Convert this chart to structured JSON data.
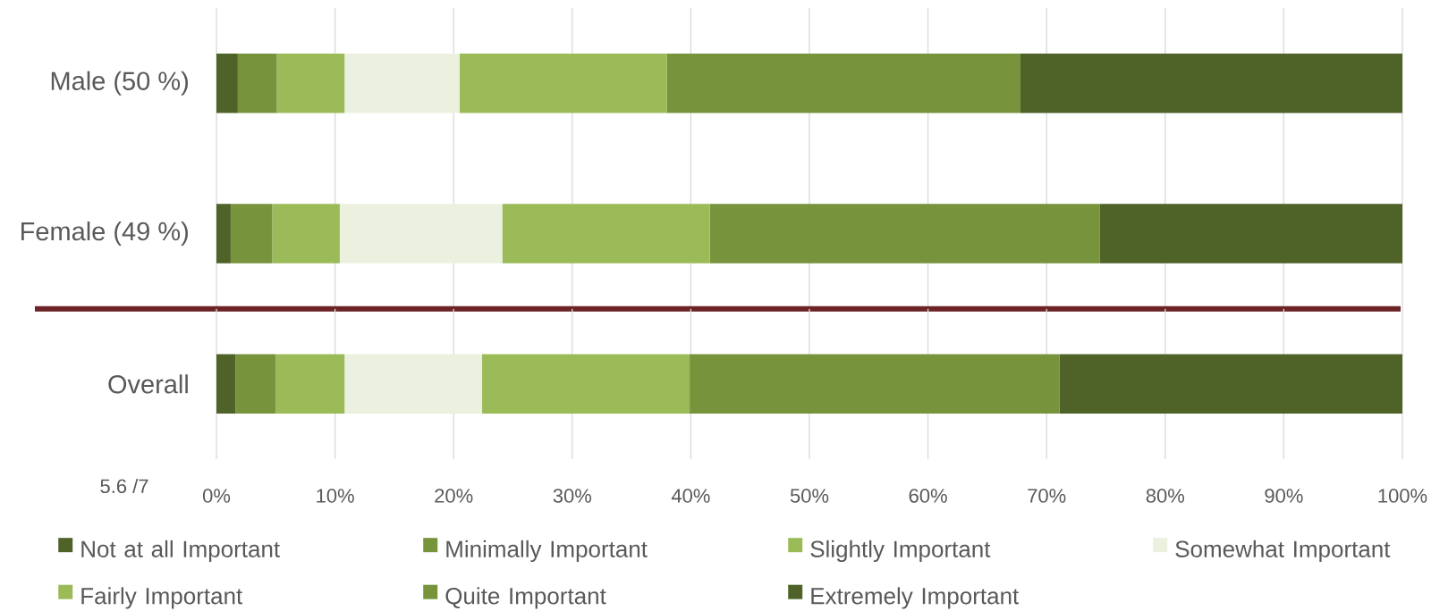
{
  "chart_data": [
    {
      "type": "bar",
      "orientation": "horizontal",
      "stacked": true,
      "categories": [
        "Male (50 %)",
        "Female (49 %)"
      ],
      "series": [
        {
          "color": "#4f6228",
          "values": [
            1.8,
            1.2
          ]
        },
        {
          "color": "#77933c",
          "values": [
            3.3,
            3.5
          ]
        },
        {
          "color": "#9bbb59",
          "values": [
            5.7,
            5.7
          ]
        },
        {
          "color": "#ebf1de",
          "values": [
            9.7,
            13.7
          ]
        },
        {
          "color": "#9bbb59",
          "values": [
            17.5,
            17.5
          ]
        },
        {
          "color": "#77933c",
          "values": [
            29.8,
            32.9
          ]
        },
        {
          "color": "#4f6228",
          "values": [
            32.2,
            25.5
          ]
        }
      ],
      "xlim": [
        0,
        100
      ],
      "xticks": [
        {
          "value": 0,
          "label": null
        },
        {
          "value": 10,
          "label": null
        },
        {
          "value": 20,
          "label": null
        },
        {
          "value": 30,
          "label": null
        },
        {
          "value": 40,
          "label": null
        },
        {
          "value": 50,
          "label": null
        },
        {
          "value": 60,
          "label": null
        },
        {
          "value": 70,
          "label": null
        },
        {
          "value": 80,
          "label": null
        },
        {
          "value": 90,
          "label": null
        },
        {
          "value": 100,
          "label": null
        }
      ],
      "grid": "x",
      "tick_labels": "y"
    },
    {
      "type": "bar",
      "orientation": "horizontal",
      "stacked": true,
      "categories": [
        "Overall"
      ],
      "series": [
        {
          "name": "Not at all Important",
          "color": "#4f6228",
          "values": [
            1.6
          ]
        },
        {
          "name": "Minimally Important",
          "color": "#77933c",
          "values": [
            3.4
          ]
        },
        {
          "name": "Slightly Important",
          "color": "#9bbb59",
          "values": [
            5.8
          ]
        },
        {
          "name": "Somewhat Important",
          "color": "#ebf1de",
          "values": [
            11.6
          ]
        },
        {
          "name": "Fairly Important",
          "color": "#9bbb59",
          "values": [
            17.5
          ]
        },
        {
          "name": "Quite Important",
          "color": "#77933c",
          "values": [
            31.2
          ]
        },
        {
          "name": "Extremely Important",
          "color": "#4f6228",
          "values": [
            28.9
          ]
        }
      ],
      "xlim": [
        0,
        100
      ],
      "xticks": [
        {
          "value": 0,
          "label": "0%"
        },
        {
          "value": 10,
          "label": "10%"
        },
        {
          "value": 20,
          "label": "20%"
        },
        {
          "value": 30,
          "label": "30%"
        },
        {
          "value": 40,
          "label": "40%"
        },
        {
          "value": 50,
          "label": "50%"
        },
        {
          "value": 60,
          "label": "60%"
        },
        {
          "value": 70,
          "label": "70%"
        },
        {
          "value": 80,
          "label": "80%"
        },
        {
          "value": 90,
          "label": "90%"
        },
        {
          "value": 100,
          "label": "100%"
        }
      ],
      "grid": "x",
      "legend": "bottom",
      "annotations": [
        "5.6 /7"
      ]
    }
  ]
}
